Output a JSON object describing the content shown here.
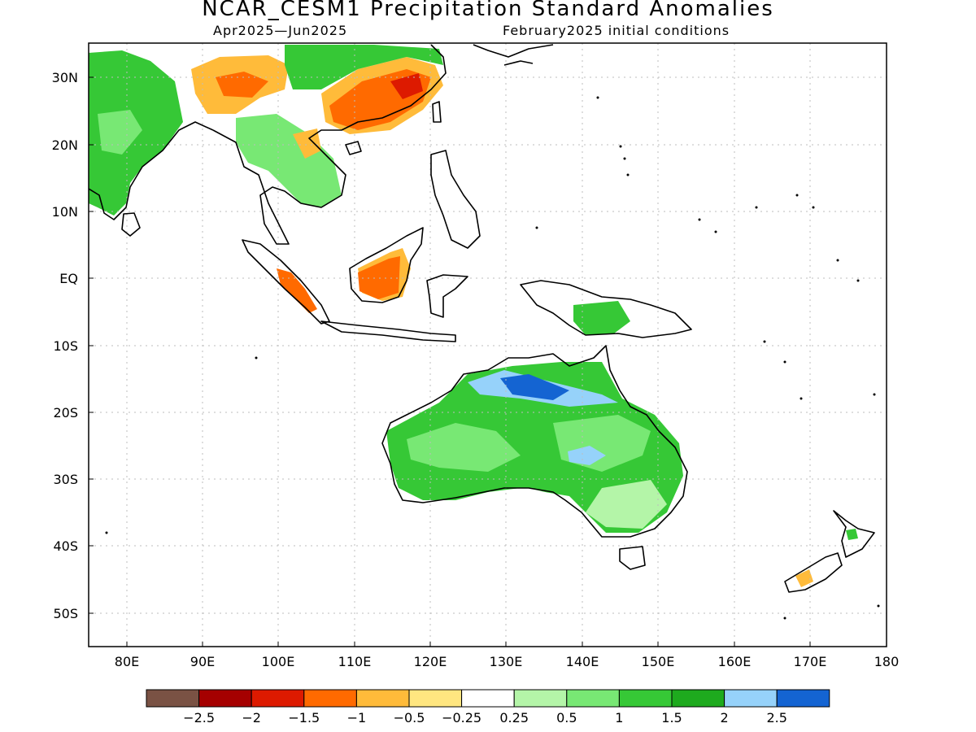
{
  "title": "NCAR_CESM1 Precipitation Standard Anomalies",
  "subtitle_left": "Apr2025—Jun2025",
  "subtitle_right": "February2025 initial conditions",
  "lat_labels": [
    "30N",
    "20N",
    "10N",
    "EQ",
    "10S",
    "20S",
    "30S",
    "40S",
    "50S"
  ],
  "lon_labels": [
    "80E",
    "90E",
    "100E",
    "110E",
    "120E",
    "130E",
    "140E",
    "150E",
    "160E",
    "170E",
    "180"
  ],
  "colorbar": {
    "colors": [
      "#7a5244",
      "#a50000",
      "#dd1a00",
      "#ff6a00",
      "#ffbb3a",
      "#ffe680",
      "#ffffff",
      "#b4f5a8",
      "#78e874",
      "#36c836",
      "#1eaa1e",
      "#96d2fa",
      "#1464d2"
    ],
    "labels": [
      "−2.5",
      "−2",
      "−1.5",
      "−1",
      "−0.5",
      "−0.25",
      "0.25",
      "0.5",
      "1",
      "1.5",
      "2",
      "2.5"
    ]
  }
}
